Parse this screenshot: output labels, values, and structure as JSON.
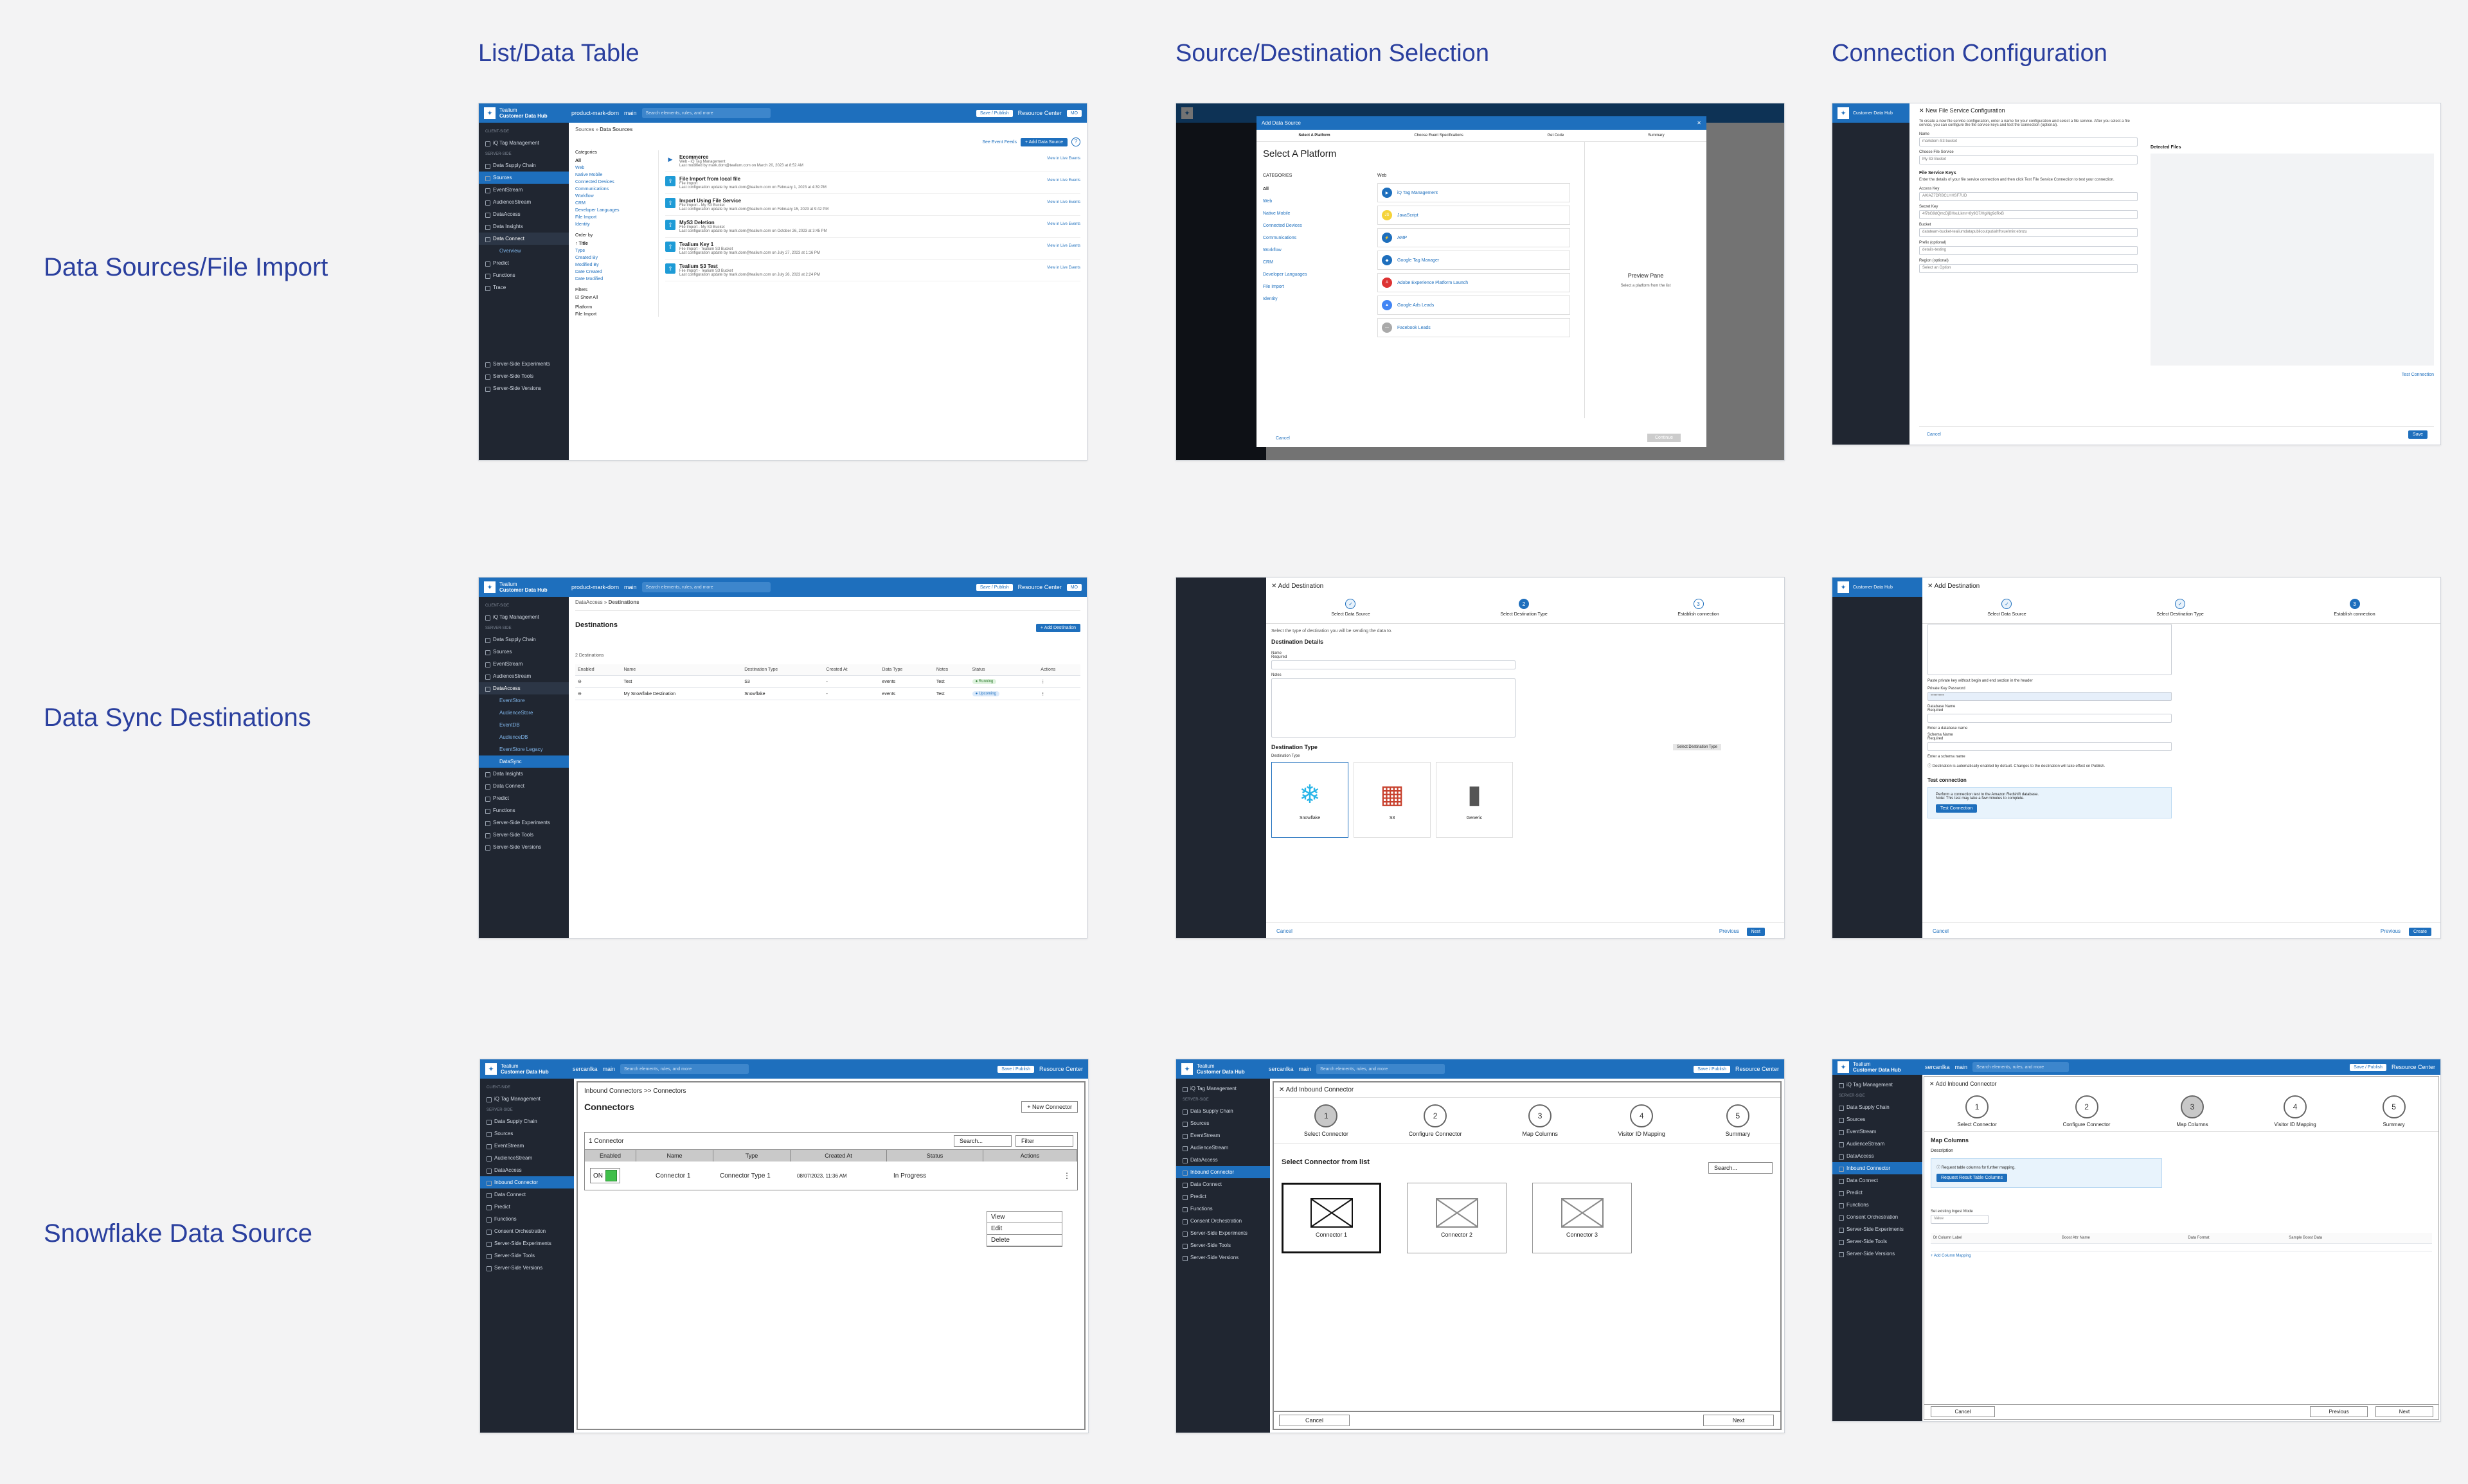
{
  "column_titles": [
    "List/Data Table",
    "Source/Destination Selection",
    "Connection Configuration"
  ],
  "row_titles": [
    "Data Sources/File Import",
    "Data Sync Destinations",
    "Snowflake Data Source"
  ],
  "colors": {
    "accent": "#2a3f9e",
    "brand_blue": "#1e6fbd",
    "sidebar_bg": "#202631"
  },
  "common": {
    "brand_line1": "Tealium",
    "brand_line2": "Customer Data Hub",
    "profile": "product-mark-dorn",
    "profile_alt": "sercanlka",
    "branch": "main",
    "search_placeholder": "Search elements, rules, and more",
    "save_publish": "Save / Publish",
    "resource_center": "Resource Center",
    "avatar": "MO"
  },
  "sidebar": {
    "client_side": "Client-Side",
    "server_side": "Server-Side",
    "items": [
      "iQ Tag Management",
      "Data Supply Chain",
      "Sources",
      "EventStream",
      "AudienceStream",
      "DataAccess",
      "Data Insights",
      "Data Connect",
      "Predict",
      "Functions",
      "Trace",
      "Server-Side Experiments",
      "Server-Side Tools",
      "Server-Side Versions"
    ],
    "overview": "Overview",
    "dataaccess_items": [
      "EventStore",
      "AudienceStore",
      "EventDB",
      "AudienceDB",
      "EventStore Legacy",
      "DataSync"
    ],
    "inbound_connector": "Inbound Connector",
    "consent": "Consent Orchestration"
  },
  "s1": {
    "crumb_root": "Sources",
    "crumb_leaf": "Data Sources",
    "see_event_feeds": "See Event Feeds",
    "add_data_source": "+ Add Data Source",
    "filter_heading": "Categories",
    "categories": [
      "All",
      "Web",
      "Native Mobile",
      "Connected Devices",
      "Communications",
      "Workflow",
      "CRM",
      "Developer Languages",
      "File Import",
      "Identity"
    ],
    "order_by": "Order by",
    "order_items": [
      "Title",
      "Type",
      "Created By",
      "Modified By",
      "Date Created",
      "Date Modified"
    ],
    "filters": "Filters",
    "show_all": "Show All",
    "platform": "Platform",
    "file_import": "File Import",
    "sources": [
      {
        "name": "Ecommerce",
        "type": "Web - iQ Tag Management",
        "meta": "Last modified by mark.dorn@tealium.com on March 20, 2023 at 8:52 AM",
        "action": "View in Live Events"
      },
      {
        "name": "File Import from local file",
        "type": "File Import",
        "meta": "Last configuration update by mark.dorn@tealium.com on February 1, 2023 at 4:39 PM",
        "action": "View in Live Events"
      },
      {
        "name": "Import Using File Service",
        "type": "File Import - My S3 Bucket",
        "meta": "Last configuration update by mark.dorn@tealium.com on February 15, 2023 at 9:42 PM",
        "action": "View in Live Events"
      },
      {
        "name": "MyS3 Deletion",
        "type": "File Import - My S3 Bucket",
        "meta": "Last configuration update by mark.dorn@tealium.com on October 26, 2023 at 3:45 PM",
        "action": "View in Live Events"
      },
      {
        "name": "Tealium Key 1",
        "type": "File Import - Tealium S3 Bucket",
        "meta": "Last configuration update by mark.dorn@tealium.com on July 27, 2023 at 1:16 PM",
        "action": "View in Live Events"
      },
      {
        "name": "Tealium S3 Test",
        "type": "File Import - Tealium S3 Bucket",
        "meta": "Last configuration update by mark.dorn@tealium.com on July 26, 2023 at 2:24 PM",
        "action": "View in Live Events"
      }
    ]
  },
  "s2": {
    "modal_title": "Add Data Source",
    "steps": [
      "Select A Platform",
      "Choose Event Specifications",
      "Get Code",
      "Summary"
    ],
    "heading": "Select A Platform",
    "categories_label": "CATEGORIES",
    "categories": [
      "All",
      "Web",
      "Native Mobile",
      "Connected Devices",
      "Communications",
      "Workflow",
      "CRM",
      "Developer Languages",
      "File Import",
      "Identity"
    ],
    "web_label": "Web",
    "platforms": [
      "iQ Tag Management",
      "JavaScript",
      "AMP",
      "Google Tag Manager",
      "Adobe Experience Platform Launch",
      "Google Ads Leads",
      "Facebook Leads"
    ],
    "preview_title": "Preview Pane",
    "preview_text": "Select a platform from the list",
    "cancel": "Cancel",
    "continue": "Continue"
  },
  "s3": {
    "title": "New File Service Configuration",
    "intro": "To create a new file service configuration, enter a name for your configuration and select a file service. After you select a file service, you can configure the file service keys and test the connection (optional).",
    "name_label": "Name",
    "name_value": "markdorn-S3 bucket",
    "choose_label": "Choose File Service",
    "choose_value": "My S3 Bucket",
    "keys_heading": "File Service Keys",
    "keys_intro": "Enter the details of your file service connection and then click Test File Service Connection to test your connection.",
    "access_label": "Access Key",
    "access_value": "AKIAZ7DRBCLHHSF7UD",
    "secret_label": "Secret Key",
    "secret_value": "4f7bG9dQmcDjBHxuLkmr+8y9O7/HgiNg9dRxB",
    "bucket_label": "Bucket",
    "bucket_value": "datateam-bucket-tealiumdatapublicoutput/ahfhxue/mirr.ebnzu",
    "prefix_label": "Prefix (optional)",
    "prefix_value": "details-testing",
    "region_label": "Region (optional)",
    "region_value": "Select an Option",
    "detected_files": "Detected Files",
    "test_connection": "Test Connection",
    "cancel": "Cancel",
    "save": "Save"
  },
  "s4": {
    "crumb_root": "DataAccess",
    "crumb_leaf": "Destinations",
    "title": "Destinations",
    "add_destination": "+ Add Destination",
    "count": "2 Destinations",
    "columns": [
      "Enabled",
      "Name",
      "Destination Type",
      "Created At",
      "Data Type",
      "Notes",
      "Status",
      "Actions"
    ],
    "rows": [
      {
        "name": "Test",
        "type": "S3",
        "created": "-",
        "data_type": "events",
        "notes": "Test",
        "status": "Running"
      },
      {
        "name": "My Snowflake Destination",
        "type": "Snowflake",
        "created": "-",
        "data_type": "events",
        "notes": "Test",
        "status": "Upcoming"
      }
    ]
  },
  "s5": {
    "title": "Add Destination",
    "steps": [
      "Select Data Source",
      "Select Destination Type",
      "Establish connection"
    ],
    "intro": "Select the type of destination you will be sending the data to.",
    "details_heading": "Destination Details",
    "name_label": "Name",
    "name_hint": "Required",
    "notes_label": "Notes",
    "type_heading": "Destination Type",
    "type_tag": "Select Destination Type",
    "type_label": "Destination Type",
    "types": [
      "Snowflake",
      "S3",
      "Generic"
    ],
    "cancel": "Cancel",
    "previous": "Previous",
    "next": "Next"
  },
  "s6": {
    "title": "Add Destination",
    "steps": [
      "Select Data Source",
      "Select Destination Type",
      "Establish connection"
    ],
    "pk_hint": "Paste private key without begin and end section in the header",
    "pk_password": "Private Key Password",
    "pk_value": "••••••••••",
    "db_label": "Database Name",
    "db_hint": "Required",
    "db_placeholder": "Enter a database name",
    "schema_label": "Schema Name",
    "schema_hint": "Required",
    "schema_placeholder": "Enter a schema name",
    "info": "Destination is automatically enabled by default. Changes to the destination will take effect on Publish.",
    "test_heading": "Test connection",
    "test_text": "Perform a connection test to the Amazon Redshift database.",
    "test_note": "Note: This test may take a few minutes to complete.",
    "test_button": "Test Connection",
    "cancel": "Cancel",
    "previous": "Previous",
    "create": "Create"
  },
  "s7": {
    "crumb": "Inbound Connectors >> Connectors",
    "title": "Connectors",
    "new_connector": "+ New Connector",
    "count": "1 Connector",
    "search": "Search...",
    "filter": "Filter",
    "columns": [
      "Enabled",
      "Name",
      "Type",
      "Created At",
      "Status",
      "Actions"
    ],
    "row": {
      "toggle": "ON",
      "name": "Connector 1",
      "type": "Connector Type 1",
      "created": "08/07/2023, 11:36 AM",
      "status": "In Progress"
    },
    "menu": [
      "View",
      "Edit",
      "Delete"
    ]
  },
  "s8": {
    "title": "Add Inbound Connector",
    "steps": [
      "Select Connector",
      "Configure Connector",
      "Map Columns",
      "Visitor ID Mapping",
      "Summary"
    ],
    "heading": "Select Connector from list",
    "search": "Search...",
    "connectors": [
      "Connector 1",
      "Connector 2",
      "Connector 3"
    ],
    "cancel": "Cancel",
    "next": "Next"
  },
  "s9": {
    "title": "Add Inbound Connector",
    "steps": [
      "Select Connector",
      "Configure Connector",
      "Map Columns",
      "Visitor ID Mapping",
      "Summary"
    ],
    "heading": "Map Columns",
    "description": "Description",
    "info": "Request table columns for further mapping.",
    "request_button": "Request Result Table Columns",
    "select_label": "Set existing Ingest Mode",
    "select_value": "Value",
    "table_cols": [
      "Dt Column Label",
      "Boost Attr Name",
      "Data Format",
      "Sample Boost Data"
    ],
    "add_mapping": "+ Add Column Mapping",
    "cancel": "Cancel",
    "previous": "Previous",
    "next": "Next"
  }
}
